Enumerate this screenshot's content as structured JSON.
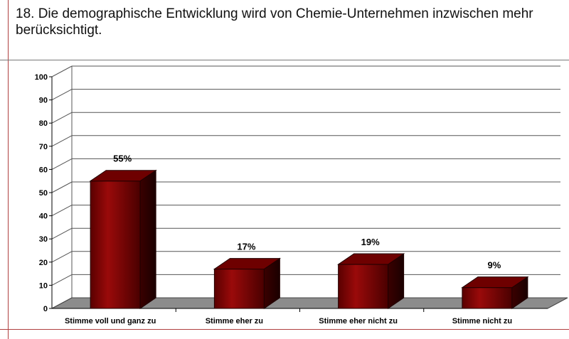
{
  "title": "18. Die demographische Entwicklung wird von Chemie-Unternehmen inzwischen mehr berücksichtigt.",
  "chart_data": {
    "type": "bar",
    "categories": [
      "Stimme voll und ganz zu",
      "Stimme eher zu",
      "Stimme eher nicht zu",
      "Stimme nicht zu"
    ],
    "values": [
      55,
      17,
      19,
      9
    ],
    "value_labels": [
      "55%",
      "17%",
      "19%",
      "9%"
    ],
    "ylim": [
      0,
      100
    ],
    "yticks": [
      0,
      10,
      20,
      30,
      40,
      50,
      60,
      70,
      80,
      90,
      100
    ],
    "xlabel": "",
    "ylabel": "",
    "grid": true,
    "bar_color": "#7a0000"
  }
}
